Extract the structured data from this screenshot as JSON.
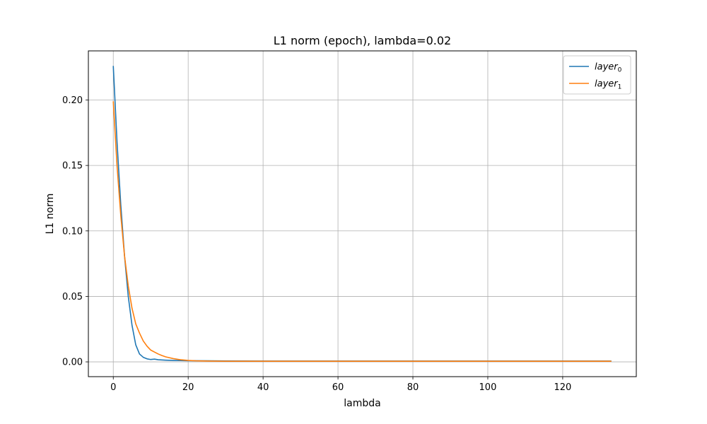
{
  "chart_data": {
    "type": "line",
    "title": "L1 norm (epoch), lambda=0.02",
    "xlabel": "lambda",
    "ylabel": "L1 norm",
    "xlim": [
      -6.65,
      139.65
    ],
    "ylim": [
      -0.0113,
      0.2375
    ],
    "xticks": [
      0,
      20,
      40,
      60,
      80,
      100,
      120
    ],
    "xtick_labels": [
      "0",
      "20",
      "40",
      "60",
      "80",
      "100",
      "120"
    ],
    "yticks": [
      0.0,
      0.05,
      0.1,
      0.15,
      0.2
    ],
    "ytick_labels": [
      "0.00",
      "0.05",
      "0.10",
      "0.15",
      "0.20"
    ],
    "grid": true,
    "legend_position": "top-right",
    "series": [
      {
        "name": "layer",
        "subscript": "0",
        "color": "#1f77b4",
        "x": [
          0,
          1,
          2,
          3,
          4,
          5,
          6,
          7,
          8,
          9,
          10,
          11,
          12,
          14,
          16,
          18,
          20,
          25,
          30,
          40,
          60,
          80,
          100,
          120,
          133
        ],
        "y": [
          0.226,
          0.168,
          0.12,
          0.081,
          0.05,
          0.028,
          0.013,
          0.006,
          0.0035,
          0.0023,
          0.0018,
          0.0021,
          0.0016,
          0.0013,
          0.0011,
          0.001,
          0.0009,
          0.0008,
          0.0007,
          0.0006,
          0.0006,
          0.0006,
          0.0006,
          0.0006,
          0.0006
        ]
      },
      {
        "name": "layer",
        "subscript": "1",
        "color": "#ff7f0e",
        "x": [
          0,
          1,
          2,
          3,
          4,
          5,
          6,
          7,
          8,
          9,
          10,
          11,
          12,
          13,
          14,
          16,
          18,
          20,
          22,
          25,
          30,
          40,
          60,
          80,
          100,
          120,
          133
        ],
        "y": [
          0.199,
          0.15,
          0.112,
          0.081,
          0.058,
          0.041,
          0.029,
          0.022,
          0.016,
          0.012,
          0.009,
          0.0075,
          0.006,
          0.0048,
          0.0038,
          0.0025,
          0.0016,
          0.0011,
          0.0008,
          0.0006,
          0.0005,
          0.0005,
          0.0005,
          0.0005,
          0.0005,
          0.0005,
          0.0005
        ]
      }
    ]
  }
}
